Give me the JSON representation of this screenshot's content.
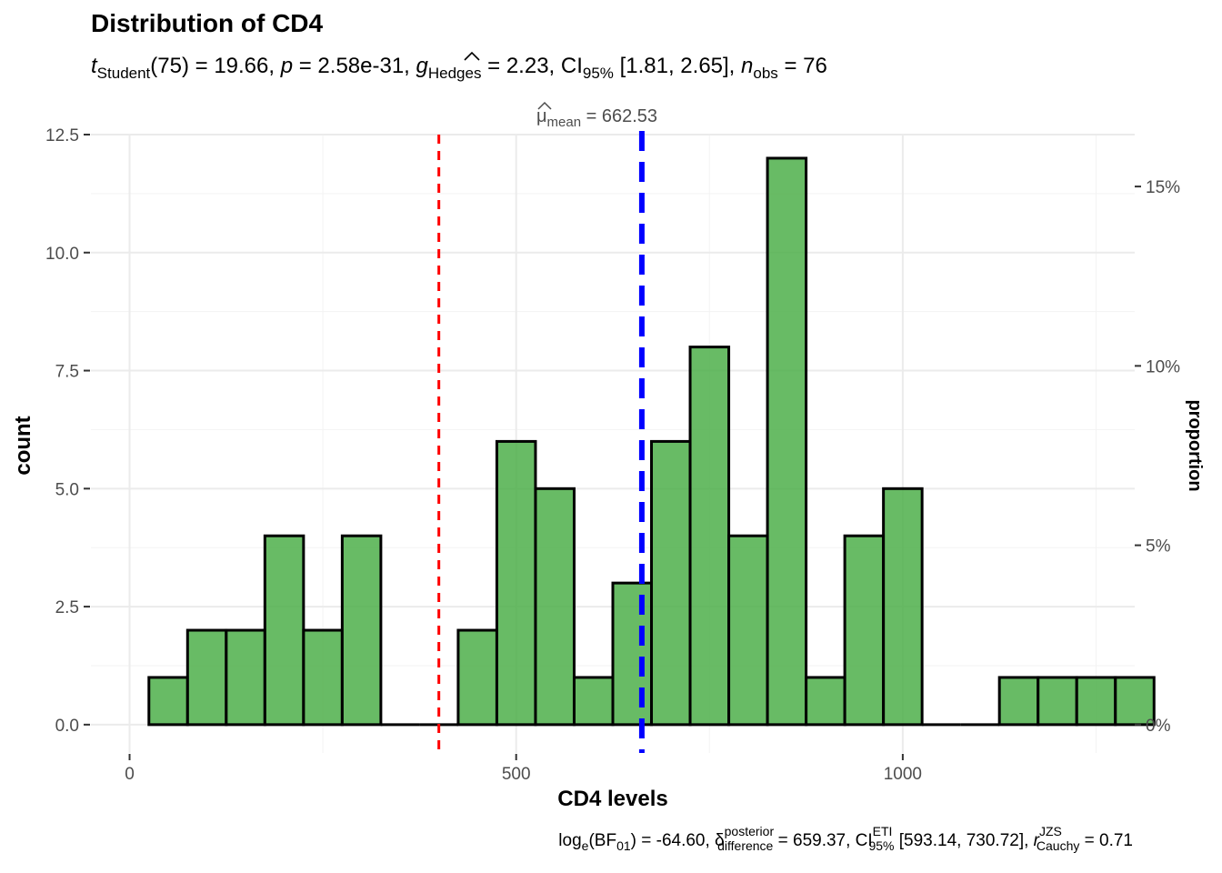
{
  "chart_data": {
    "type": "bar",
    "title": "Distribution of CD4",
    "subtitle": {
      "stat_symbol": "t",
      "stat_sub": "Student",
      "stat_rest": "(75) = 19.66, ",
      "p_symbol": "p",
      "p_rest": " = 2.58e-31, ",
      "effect_symbol": "g",
      "effect_sub": "Hedges",
      "effect_rest": " = 2.23, CI",
      "ci_sub": "95%",
      "ci_rest": " [1.81, 2.65], ",
      "n_symbol": "n",
      "n_sub": "obs",
      "n_rest": " = 76"
    },
    "caption": {
      "bf_pre": "log",
      "bf_sub": "e",
      "bf_rest": "(BF",
      "bf_sub2": "01",
      "bf_end": ") = -64.60, δ",
      "delta_sup": "posterior",
      "delta_sub": "difference",
      "delta_rest": " = 659.37, CI",
      "ci_sup": "ETI",
      "ci_sub": "95%",
      "ci_rest": " [593.14, 730.72], ",
      "r_symbol": "r",
      "r_sup": "JZS",
      "r_sub": "Cauchy",
      "r_rest": " = 0.71"
    },
    "mean_label": {
      "symbol": "μ",
      "sub": "mean",
      "rest": " = 662.53"
    },
    "xlabel": "CD4 levels",
    "ylabel": "count",
    "ylabel_right": "proportion",
    "xlim": [
      -50,
      1300
    ],
    "ylim": [
      -0.6,
      12.5
    ],
    "x_ticks": [
      0,
      500,
      1000
    ],
    "x_tick_labels": [
      "0",
      "500",
      "1000"
    ],
    "y_ticks": [
      0,
      2.5,
      5,
      7.5,
      10,
      12.5
    ],
    "y_tick_labels": [
      "0.0",
      "2.5",
      "5.0",
      "7.5",
      "10.0",
      "12.5"
    ],
    "y_right_ticks": [
      0,
      0.05,
      0.1,
      0.15
    ],
    "y_right_tick_labels": [
      "0%",
      "5%",
      "10%",
      "15%"
    ],
    "n_obs": 76,
    "binwidth": 50,
    "bins": [
      {
        "x0": 25,
        "x1": 75,
        "count": 1
      },
      {
        "x0": 75,
        "x1": 125,
        "count": 2
      },
      {
        "x0": 125,
        "x1": 175,
        "count": 2
      },
      {
        "x0": 175,
        "x1": 225,
        "count": 4
      },
      {
        "x0": 225,
        "x1": 275,
        "count": 2
      },
      {
        "x0": 275,
        "x1": 325,
        "count": 4
      },
      {
        "x0": 325,
        "x1": 375,
        "count": 0
      },
      {
        "x0": 375,
        "x1": 425,
        "count": 0
      },
      {
        "x0": 425,
        "x1": 475,
        "count": 2
      },
      {
        "x0": 475,
        "x1": 525,
        "count": 6
      },
      {
        "x0": 525,
        "x1": 575,
        "count": 5
      },
      {
        "x0": 575,
        "x1": 625,
        "count": 1
      },
      {
        "x0": 625,
        "x1": 675,
        "count": 3
      },
      {
        "x0": 675,
        "x1": 725,
        "count": 6
      },
      {
        "x0": 725,
        "x1": 775,
        "count": 8
      },
      {
        "x0": 775,
        "x1": 825,
        "count": 4
      },
      {
        "x0": 825,
        "x1": 875,
        "count": 12
      },
      {
        "x0": 875,
        "x1": 925,
        "count": 1
      },
      {
        "x0": 925,
        "x1": 975,
        "count": 4
      },
      {
        "x0": 975,
        "x1": 1025,
        "count": 5
      },
      {
        "x0": 1025,
        "x1": 1075,
        "count": 0
      },
      {
        "x0": 1075,
        "x1": 1125,
        "count": 0
      },
      {
        "x0": 1125,
        "x1": 1175,
        "count": 1
      },
      {
        "x0": 1175,
        "x1": 1225,
        "count": 1
      },
      {
        "x0": 1225,
        "x1": 1275,
        "count": 1
      },
      {
        "x0": 1275,
        "x1": 1325,
        "count": 1
      }
    ],
    "mean_value": 662.53,
    "test_value": 400,
    "colors": {
      "bar_fill": "#4daf4a",
      "mean_line": "#0000ff",
      "test_line": "#ff0000"
    },
    "grid": true
  }
}
